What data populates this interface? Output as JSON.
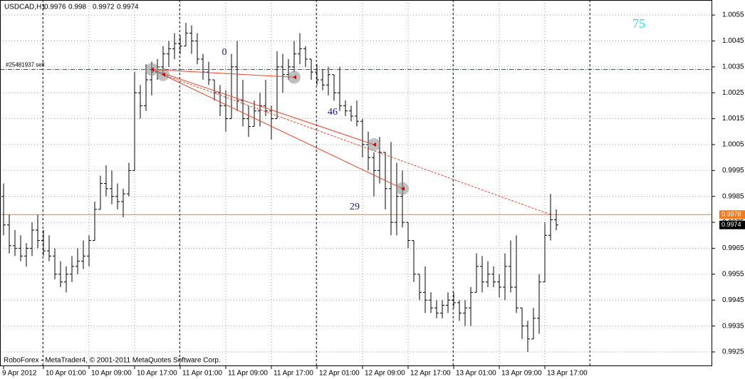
{
  "chart_data": {
    "type": "ohlc",
    "title": "USDCAD,H1",
    "categories": [
      "9 Apr 2012",
      null,
      null,
      null,
      null,
      null,
      null,
      "10 Apr 01:00",
      null,
      null,
      null,
      null,
      null,
      null,
      null,
      "10 Apr 09:00",
      null,
      null,
      null,
      null,
      null,
      null,
      null,
      "10 Apr 17:00",
      null,
      null,
      null,
      null,
      null,
      null,
      null,
      "11 Apr 01:00",
      null,
      null,
      null,
      null,
      null,
      null,
      null,
      "11 Apr 09:00",
      null,
      null,
      null,
      null,
      null,
      null,
      null,
      "11 Apr 17:00",
      null,
      null,
      null,
      null,
      null,
      null,
      null,
      "12 Apr 01:00",
      null,
      null,
      null,
      null,
      null,
      null,
      null,
      "12 Apr 09:00",
      null,
      null,
      null,
      null,
      null,
      null,
      null,
      "12 Apr 17:00",
      null,
      null,
      null,
      null,
      null,
      null,
      null,
      "13 Apr 01:00",
      null,
      null,
      null,
      null,
      null,
      null,
      null,
      "13 Apr 09:00",
      null,
      null,
      null,
      null,
      null,
      null,
      null,
      "13 Apr 17:00",
      null,
      null
    ],
    "bars": [
      [
        0.9985,
        0.999,
        0.997,
        0.9974
      ],
      [
        0.9974,
        0.9978,
        0.9963,
        0.9966
      ],
      [
        0.9966,
        0.9972,
        0.9962,
        0.9965
      ],
      [
        0.9965,
        0.997,
        0.996,
        0.9962
      ],
      [
        0.9962,
        0.9967,
        0.9958,
        0.9965
      ],
      [
        0.9965,
        0.9975,
        0.9962,
        0.9972
      ],
      [
        0.9972,
        0.9978,
        0.9965,
        0.9968
      ],
      [
        0.9968,
        0.9972,
        0.9962,
        0.9964
      ],
      [
        0.9964,
        0.997,
        0.996,
        0.9962
      ],
      [
        0.9962,
        0.9965,
        0.9953,
        0.9955
      ],
      [
        0.9955,
        0.996,
        0.995,
        0.9952
      ],
      [
        0.9952,
        0.9958,
        0.9948,
        0.9955
      ],
      [
        0.9955,
        0.9962,
        0.9952,
        0.9958
      ],
      [
        0.9958,
        0.9965,
        0.9955,
        0.996
      ],
      [
        0.996,
        0.9968,
        0.9957,
        0.9962
      ],
      [
        0.9962,
        0.997,
        0.9958,
        0.9968
      ],
      [
        0.9968,
        0.9983,
        0.9968,
        0.998
      ],
      [
        0.998,
        0.9993,
        0.998,
        0.999
      ],
      [
        0.999,
        0.9997,
        0.9985,
        0.9988
      ],
      [
        0.9988,
        0.9995,
        0.9982,
        0.9985
      ],
      [
        0.9985,
        0.999,
        0.998,
        0.9983
      ],
      [
        0.9983,
        0.9988,
        0.9977,
        0.9986
      ],
      [
        0.9986,
        0.9998,
        0.9985,
        0.9995
      ],
      [
        0.9995,
        1.0033,
        0.9995,
        1.0025
      ],
      [
        1.0025,
        1.0028,
        1.0015,
        1.002
      ],
      [
        1.002,
        1.0036,
        1.0018,
        1.003
      ],
      [
        1.003,
        1.0037,
        1.0024,
        1.0033
      ],
      [
        1.0033,
        1.0038,
        1.003,
        1.0035
      ],
      [
        1.0035,
        1.0043,
        1.0032,
        1.004
      ],
      [
        1.004,
        1.0045,
        1.0035,
        1.0042
      ],
      [
        1.0042,
        1.0048,
        1.0038,
        1.0044
      ],
      [
        1.0044,
        1.0047,
        1.004,
        1.0043
      ],
      [
        1.0043,
        1.0052,
        1.0043,
        1.0048
      ],
      [
        1.0048,
        1.0051,
        1.004,
        1.0045
      ],
      [
        1.0045,
        1.0048,
        1.0036,
        1.0038
      ],
      [
        1.0038,
        1.004,
        1.003,
        1.0033
      ],
      [
        1.0033,
        1.0037,
        1.0028,
        1.003
      ],
      [
        1.003,
        1.003,
        1.0022,
        1.0025
      ],
      [
        1.0025,
        1.0028,
        1.0016,
        1.002
      ],
      [
        1.002,
        1.0026,
        1.001,
        1.0015
      ],
      [
        1.0015,
        1.004,
        1.0015,
        1.0035
      ],
      [
        1.0035,
        1.0045,
        1.0018,
        1.0022
      ],
      [
        1.0022,
        1.003,
        1.0012,
        1.0015
      ],
      [
        1.0015,
        1.002,
        1.0008,
        1.0012
      ],
      [
        1.0012,
        1.0022,
        1.0012,
        1.0018
      ],
      [
        1.0018,
        1.0025,
        1.0012,
        1.002
      ],
      [
        1.002,
        1.003,
        1.0016,
        1.0018
      ],
      [
        1.0018,
        1.002,
        1.0007,
        1.0015
      ],
      [
        1.0015,
        1.0041,
        1.0015,
        1.0035
      ],
      [
        1.0035,
        1.004,
        1.0025,
        1.0032
      ],
      [
        1.0032,
        1.0038,
        1.003,
        1.0035
      ],
      [
        1.0035,
        1.0045,
        1.0033,
        1.004
      ],
      [
        1.004,
        1.0048,
        1.0036,
        1.0042
      ],
      [
        1.0042,
        1.0043,
        1.0035,
        1.0038
      ],
      [
        1.0038,
        1.0038,
        1.003,
        1.0033
      ],
      [
        1.0033,
        1.0036,
        1.0028,
        1.003
      ],
      [
        1.003,
        1.0034,
        1.0026,
        1.0028
      ],
      [
        1.0028,
        1.0035,
        1.0024,
        1.0032
      ],
      [
        1.0032,
        1.0032,
        1.0022,
        1.0025
      ],
      [
        1.0025,
        1.0035,
        1.0018,
        1.002
      ],
      [
        1.002,
        1.0022,
        1.0016,
        1.0018
      ],
      [
        1.0018,
        1.002,
        1.0014,
        1.0016
      ],
      [
        1.0016,
        1.0022,
        1.0012,
        1.0014
      ],
      [
        1.0014,
        1.0015,
        1.0,
        1.0005
      ],
      [
        1.0005,
        1.001,
        0.9995,
        1.0
      ],
      [
        1.0,
        1.0002,
        0.9985,
        0.9995
      ],
      [
        0.9995,
        1.0008,
        0.999,
        1.0002
      ],
      [
        1.0002,
        1.0002,
        0.998,
        0.9988
      ],
      [
        0.9988,
        1.0006,
        0.997,
        0.9975
      ],
      [
        0.9975,
        0.9998,
        0.997,
        0.9985
      ],
      [
        0.9985,
        0.9995,
        0.9973,
        0.9975
      ],
      [
        0.9975,
        0.9975,
        0.9965,
        0.9968
      ],
      [
        0.9968,
        0.9968,
        0.9952,
        0.9955
      ],
      [
        0.9955,
        0.9955,
        0.9945,
        0.9948
      ],
      [
        0.9948,
        0.9958,
        0.994,
        0.9945
      ],
      [
        0.9945,
        0.9948,
        0.994,
        0.9942
      ],
      [
        0.9942,
        0.9945,
        0.9938,
        0.994
      ],
      [
        0.994,
        0.9945,
        0.9938,
        0.9943
      ],
      [
        0.9943,
        0.9948,
        0.994,
        0.9945
      ],
      [
        0.9945,
        0.9948,
        0.9942,
        0.9944
      ],
      [
        0.9944,
        0.9945,
        0.9937,
        0.994
      ],
      [
        0.994,
        0.9945,
        0.9935,
        0.9942
      ],
      [
        0.9942,
        0.995,
        0.9935,
        0.9948
      ],
      [
        0.9948,
        0.9963,
        0.9948,
        0.9958
      ],
      [
        0.9958,
        0.9962,
        0.9948,
        0.9952
      ],
      [
        0.9952,
        0.996,
        0.995,
        0.9955
      ],
      [
        0.9955,
        0.9958,
        0.995,
        0.9952
      ],
      [
        0.9952,
        0.9955,
        0.9946,
        0.995
      ],
      [
        0.995,
        0.9963,
        0.9945,
        0.9958
      ],
      [
        0.9958,
        0.9968,
        0.9948,
        0.995
      ],
      [
        0.995,
        0.997,
        0.994,
        0.9942
      ],
      [
        0.9942,
        0.9942,
        0.993,
        0.9935
      ],
      [
        0.9935,
        0.9937,
        0.9925,
        0.993
      ],
      [
        0.993,
        0.9942,
        0.993,
        0.9938
      ],
      [
        0.9938,
        0.9955,
        0.9932,
        0.9952
      ],
      [
        0.9952,
        0.9975,
        0.9952,
        0.997
      ],
      [
        0.997,
        0.9986,
        0.9968,
        0.9976
      ],
      [
        0.9976,
        0.998,
        0.9972,
        0.9974
      ]
    ],
    "color": "#000000",
    "ylim": [
      0.99195,
      1.00608
    ],
    "yticks": [
      1.0055,
      1.0045,
      1.0035,
      1.0025,
      1.0015,
      1.0005,
      0.9995,
      0.9985,
      0.9975,
      0.9965,
      0.9955,
      0.9945,
      0.9935,
      0.9925
    ],
    "grid": true,
    "order": {
      "label": "#25481937 sell",
      "price": 1.0034,
      "color": "#ff0000"
    },
    "price_level": {
      "value": 0.9978,
      "color": "#f47a20"
    },
    "trade_markers": [
      {
        "bar": 26,
        "price": 1.0034
      },
      {
        "bar": 28,
        "price": 1.0032
      },
      {
        "bar": 51,
        "price": 1.0031
      },
      {
        "bar": 65,
        "price": 1.0005
      },
      {
        "bar": 70,
        "price": 0.9988
      }
    ],
    "labels": [
      0,
      46,
      29,
      75
    ],
    "footer": "RoboForex - MetaTrader4, © 2001-2011 MetaQuotes Software Corp."
  }
}
